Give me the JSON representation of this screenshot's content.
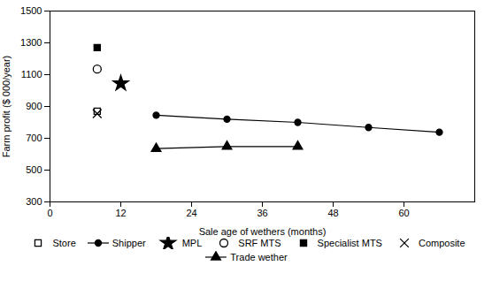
{
  "chart_data": {
    "type": "line",
    "xlabel": "Sale age of wethers (months)",
    "ylabel": "Farm profit ($ 000/year)",
    "xlim": [
      0,
      72
    ],
    "ylim": [
      300,
      1500
    ],
    "xticks": [
      0,
      12,
      24,
      36,
      48,
      60
    ],
    "yticks": [
      300,
      500,
      700,
      900,
      1100,
      1300,
      1500
    ],
    "grid": false,
    "legend": "bottom",
    "series": [
      {
        "name": "Store",
        "color": "black",
        "marker": "square-open",
        "line_style": "none",
        "x": [
          8
        ],
        "values": [
          870
        ]
      },
      {
        "name": "Shipper",
        "color": "black",
        "marker": "circle",
        "line_style": "solid",
        "x": [
          18,
          30,
          42,
          54,
          66
        ],
        "values": [
          845,
          820,
          800,
          768,
          738
        ]
      },
      {
        "name": "MPL",
        "color": "black",
        "marker": "star",
        "line_style": "none",
        "x": [
          12
        ],
        "values": [
          1045
        ]
      },
      {
        "name": "SRF MTS",
        "color": "black",
        "marker": "circle-open",
        "line_style": "none",
        "x": [
          8
        ],
        "values": [
          1135
        ]
      },
      {
        "name": "Specialist MTS",
        "color": "black",
        "marker": "square",
        "line_style": "none",
        "x": [
          8
        ],
        "values": [
          1270
        ]
      },
      {
        "name": "Composite",
        "color": "black",
        "marker": "x",
        "line_style": "none",
        "x": [
          8
        ],
        "values": [
          855
        ]
      },
      {
        "name": "Trade wether",
        "color": "black",
        "marker": "triangle",
        "line_style": "solid",
        "x": [
          18,
          30,
          42
        ],
        "values": [
          635,
          648,
          648
        ]
      }
    ]
  }
}
